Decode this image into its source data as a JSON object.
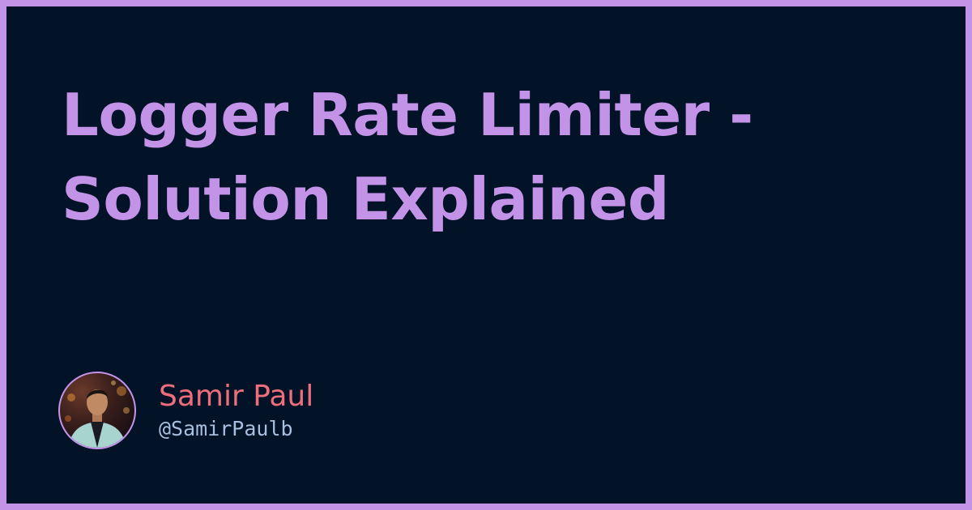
{
  "card": {
    "title": "Logger Rate Limiter - Solution Explained",
    "border_color": "#c393e8",
    "background_color": "#021327"
  },
  "author": {
    "name": "Samir Paul",
    "handle": "@SamirPaulb",
    "name_color": "#ee6e7b",
    "handle_color": "#a9bfe0"
  }
}
